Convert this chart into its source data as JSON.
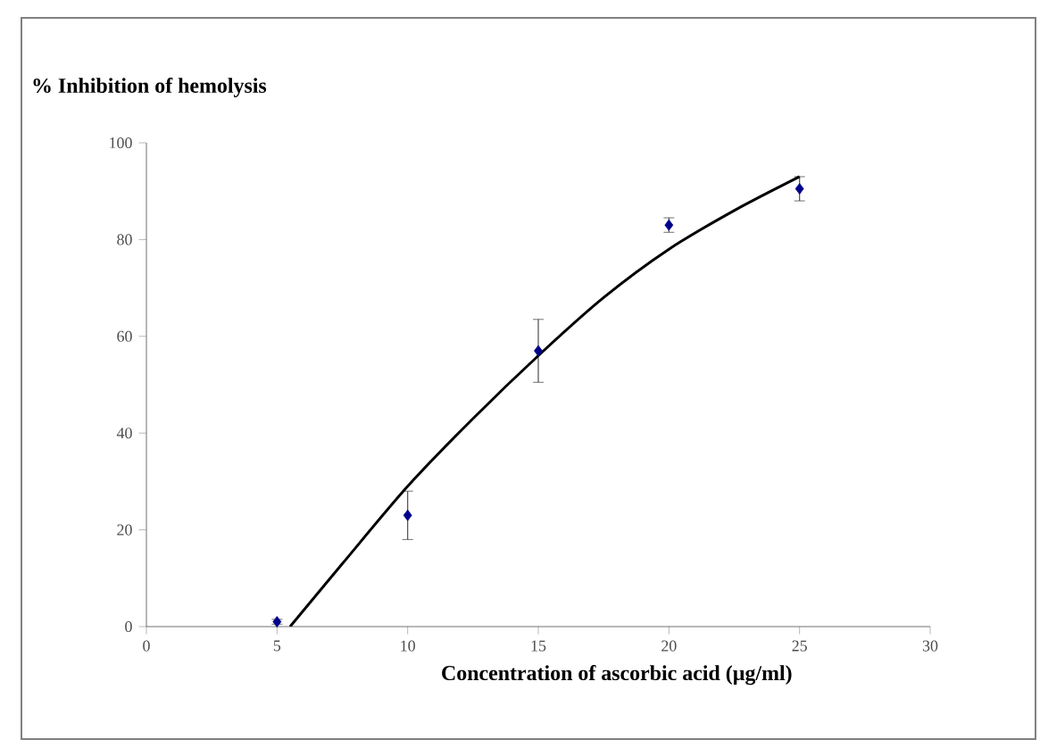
{
  "chart_data": {
    "type": "scatter",
    "ylabel": "%  Inhibition of hemolysis",
    "xlabel": "Concentration of ascorbic acid (µg/ml)",
    "xlim": [
      0,
      30
    ],
    "xticks": [
      0,
      5,
      10,
      15,
      20,
      25,
      30
    ],
    "ylim": [
      0,
      100
    ],
    "yticks": [
      0,
      20,
      40,
      60,
      80,
      100
    ],
    "grid": false,
    "series": [
      {
        "marker": "diamond",
        "color": "#00008b",
        "x": [
          5,
          10,
          15,
          20,
          25
        ],
        "values": [
          1,
          23,
          57,
          83,
          90.5
        ],
        "errors": [
          0.5,
          5,
          6.5,
          1.5,
          2.5
        ]
      },
      {
        "type": "line",
        "color": "#000000",
        "x": [
          5.5,
          7.5,
          10,
          12.5,
          15,
          17.5,
          20,
          22.5,
          25
        ],
        "values": [
          0,
          13,
          29,
          43,
          56,
          68,
          78,
          86,
          93
        ]
      }
    ]
  }
}
